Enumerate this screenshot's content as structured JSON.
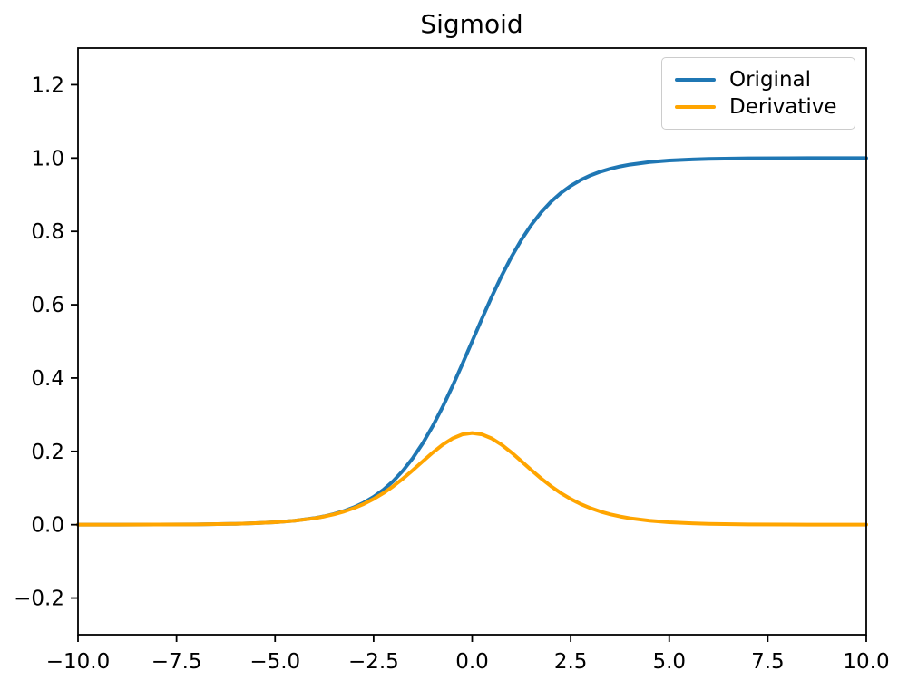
{
  "chart_data": {
    "type": "line",
    "title": "Sigmoid",
    "xlabel": "",
    "ylabel": "",
    "xlim": [
      -10,
      10
    ],
    "ylim": [
      -0.3,
      1.3
    ],
    "xticks": [
      -10.0,
      -7.5,
      -5.0,
      -2.5,
      0.0,
      2.5,
      5.0,
      7.5,
      10.0
    ],
    "xtick_labels": [
      "−10.0",
      "−7.5",
      "−5.0",
      "−2.5",
      "0.0",
      "2.5",
      "5.0",
      "7.5",
      "10.0"
    ],
    "yticks": [
      -0.2,
      0.0,
      0.2,
      0.4,
      0.6,
      0.8,
      1.0,
      1.2
    ],
    "ytick_labels": [
      "−0.2",
      "0.0",
      "0.2",
      "0.4",
      "0.6",
      "0.8",
      "1.0",
      "1.2"
    ],
    "grid": false,
    "legend_position": "upper right",
    "background": "#ffffff",
    "axis_color": "#000000",
    "x": [
      -10,
      -9,
      -8,
      -7,
      -6,
      -5.5,
      -5,
      -4.5,
      -4,
      -3.75,
      -3.5,
      -3.25,
      -3,
      -2.75,
      -2.5,
      -2.25,
      -2,
      -1.75,
      -1.5,
      -1.25,
      -1,
      -0.75,
      -0.5,
      -0.25,
      0,
      0.25,
      0.5,
      0.75,
      1,
      1.25,
      1.5,
      1.75,
      2,
      2.25,
      2.5,
      2.75,
      3,
      3.25,
      3.5,
      3.75,
      4,
      4.5,
      5,
      5.5,
      6,
      7,
      8,
      9,
      10
    ],
    "series": [
      {
        "name": "Original",
        "color": "#1f77b4",
        "values": [
          5e-05,
          0.00012,
          0.00034,
          0.00091,
          0.00247,
          0.00407,
          0.00669,
          0.01099,
          0.01799,
          0.02298,
          0.02931,
          0.03733,
          0.04743,
          0.06009,
          0.07586,
          0.09535,
          0.1192,
          0.14805,
          0.18243,
          0.2227,
          0.26894,
          0.32082,
          0.37754,
          0.43782,
          0.5,
          0.56218,
          0.62246,
          0.67918,
          0.73106,
          0.7773,
          0.81757,
          0.85195,
          0.8808,
          0.90465,
          0.92414,
          0.93991,
          0.95257,
          0.96267,
          0.97069,
          0.97702,
          0.98201,
          0.98901,
          0.99331,
          0.99593,
          0.99753,
          0.99909,
          0.99966,
          0.99988,
          0.99995
        ]
      },
      {
        "name": "Derivative",
        "color": "#ffa500",
        "values": [
          5e-05,
          0.00012,
          0.00033,
          0.00091,
          0.00247,
          0.00405,
          0.00665,
          0.01087,
          0.01766,
          0.02245,
          0.02845,
          0.03593,
          0.04518,
          0.05648,
          0.0701,
          0.08626,
          0.10499,
          0.12613,
          0.14915,
          0.17311,
          0.19661,
          0.2179,
          0.235,
          0.24613,
          0.25,
          0.24613,
          0.235,
          0.2179,
          0.19661,
          0.17311,
          0.14915,
          0.12613,
          0.10499,
          0.08626,
          0.0701,
          0.05648,
          0.04518,
          0.03593,
          0.02845,
          0.02245,
          0.01766,
          0.01087,
          0.00665,
          0.00405,
          0.00247,
          0.00091,
          0.00033,
          0.00012,
          5e-05
        ]
      }
    ]
  }
}
